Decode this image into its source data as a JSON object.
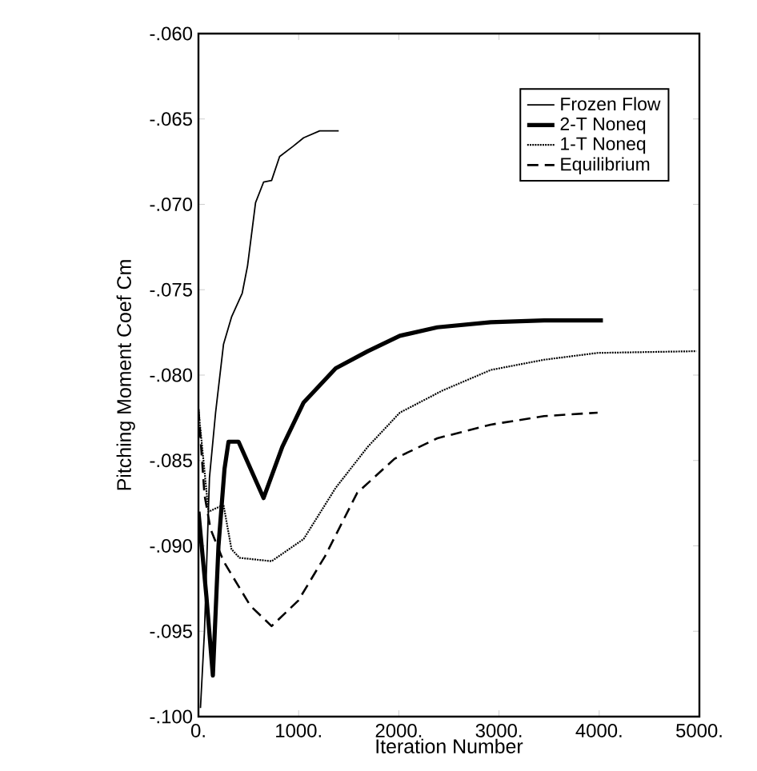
{
  "chart_data": {
    "type": "line",
    "xlabel": "Iteration  Number",
    "ylabel": "Pitching Moment Coef Cm",
    "xlim": [
      0,
      5000
    ],
    "ylim": [
      -0.1,
      -0.06
    ],
    "xticks": [
      {
        "value": 0,
        "label": "0."
      },
      {
        "value": 1000,
        "label": "1000."
      },
      {
        "value": 2000,
        "label": "2000."
      },
      {
        "value": 3000,
        "label": "3000."
      },
      {
        "value": 4000,
        "label": "4000."
      },
      {
        "value": 5000,
        "label": "5000."
      }
    ],
    "yticks": [
      {
        "value": -0.1,
        "label": "-.100"
      },
      {
        "value": -0.095,
        "label": "-.095"
      },
      {
        "value": -0.09,
        "label": "-.090"
      },
      {
        "value": -0.085,
        "label": "-.085"
      },
      {
        "value": -0.08,
        "label": "-.080"
      },
      {
        "value": -0.075,
        "label": "-.075"
      },
      {
        "value": -0.07,
        "label": "-.070"
      },
      {
        "value": -0.065,
        "label": "-.065"
      },
      {
        "value": -0.06,
        "label": "-.060"
      }
    ],
    "grid": false,
    "legend": "top right",
    "marker": "none",
    "series": [
      {
        "name": "Frozen Flow",
        "color": "#000000",
        "line_style": "solid",
        "x": [
          20,
          60,
          110,
          171,
          250,
          330,
          437,
          490,
          570,
          650,
          730,
          810,
          945,
          1050,
          1210,
          1400
        ],
        "values": [
          -0.0995,
          -0.095,
          -0.086,
          -0.0822,
          -0.0782,
          -0.0766,
          -0.0752,
          -0.0736,
          -0.0699,
          -0.0687,
          -0.0686,
          -0.0672,
          -0.0666,
          -0.0661,
          -0.0657,
          -0.0657
        ]
      },
      {
        "name": "2-T Noneq",
        "color": "#000000",
        "line_style": "solid",
        "x": [
          0,
          80,
          144,
          200,
          260,
          300,
          400,
          650,
          837,
          1050,
          1370,
          1690,
          2010,
          2384,
          2917,
          3450,
          4037
        ],
        "values": [
          -0.088,
          -0.093,
          -0.0976,
          -0.09,
          -0.0855,
          -0.0839,
          -0.0839,
          -0.0872,
          -0.0842,
          -0.0816,
          -0.0796,
          -0.0786,
          -0.0777,
          -0.0772,
          -0.0769,
          -0.0768,
          -0.0768
        ]
      },
      {
        "name": "1-T Noneq",
        "color": "#000000",
        "line_style": "dotted",
        "x": [
          0,
          100,
          250,
          330,
          410,
          730,
          1050,
          1370,
          1690,
          2010,
          2437,
          2917,
          3450,
          3984,
          4970
        ],
        "values": [
          -0.082,
          -0.088,
          -0.0876,
          -0.0902,
          -0.0907,
          -0.0909,
          -0.0896,
          -0.0866,
          -0.0842,
          -0.0822,
          -0.0809,
          -0.0797,
          -0.0791,
          -0.0787,
          -0.0786
        ]
      },
      {
        "name": "Equilibrium",
        "color": "#000000",
        "line_style": "dashed",
        "x": [
          0,
          60,
          120,
          250,
          517,
          730,
          997,
          1264,
          1584,
          1957,
          2384,
          2917,
          3450,
          3984
        ],
        "values": [
          -0.082,
          -0.087,
          -0.089,
          -0.0909,
          -0.0935,
          -0.0947,
          -0.0932,
          -0.0906,
          -0.0869,
          -0.0849,
          -0.0837,
          -0.0829,
          -0.0824,
          -0.0822
        ]
      }
    ]
  }
}
